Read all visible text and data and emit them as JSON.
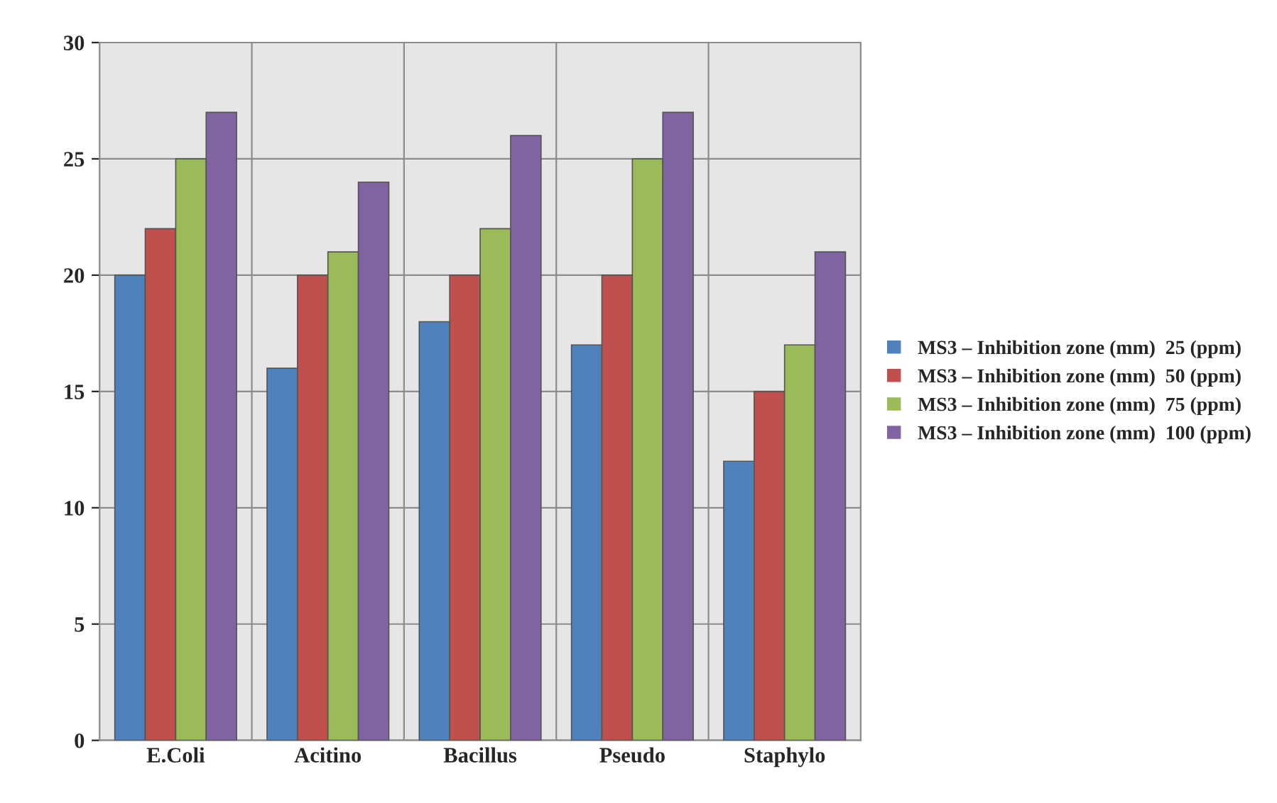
{
  "chart_data": {
    "type": "bar",
    "categories": [
      "E.Coli",
      "Acitino",
      "Bacillus",
      "Pseudo",
      "Staphylo"
    ],
    "series": [
      {
        "name": "MS3 – Inhibition zone (mm)  25 (ppm)",
        "color": "#4f81bd",
        "values": [
          20,
          16,
          18,
          17,
          12
        ]
      },
      {
        "name": "MS3 – Inhibition zone (mm)  50 (ppm)",
        "color": "#c0504d",
        "values": [
          22,
          20,
          20,
          20,
          15
        ]
      },
      {
        "name": "MS3 – Inhibition zone (mm)  75 (ppm)",
        "color": "#9bbb59",
        "values": [
          25,
          21,
          22,
          25,
          17
        ]
      },
      {
        "name": "MS3 – Inhibition zone (mm)  100 (ppm)",
        "color": "#8064a2",
        "values": [
          27,
          24,
          26,
          27,
          21
        ]
      }
    ],
    "ylim": [
      0,
      30
    ],
    "yticks": [
      0,
      5,
      10,
      15,
      20,
      25,
      30
    ],
    "grid": true,
    "legend": "right"
  }
}
